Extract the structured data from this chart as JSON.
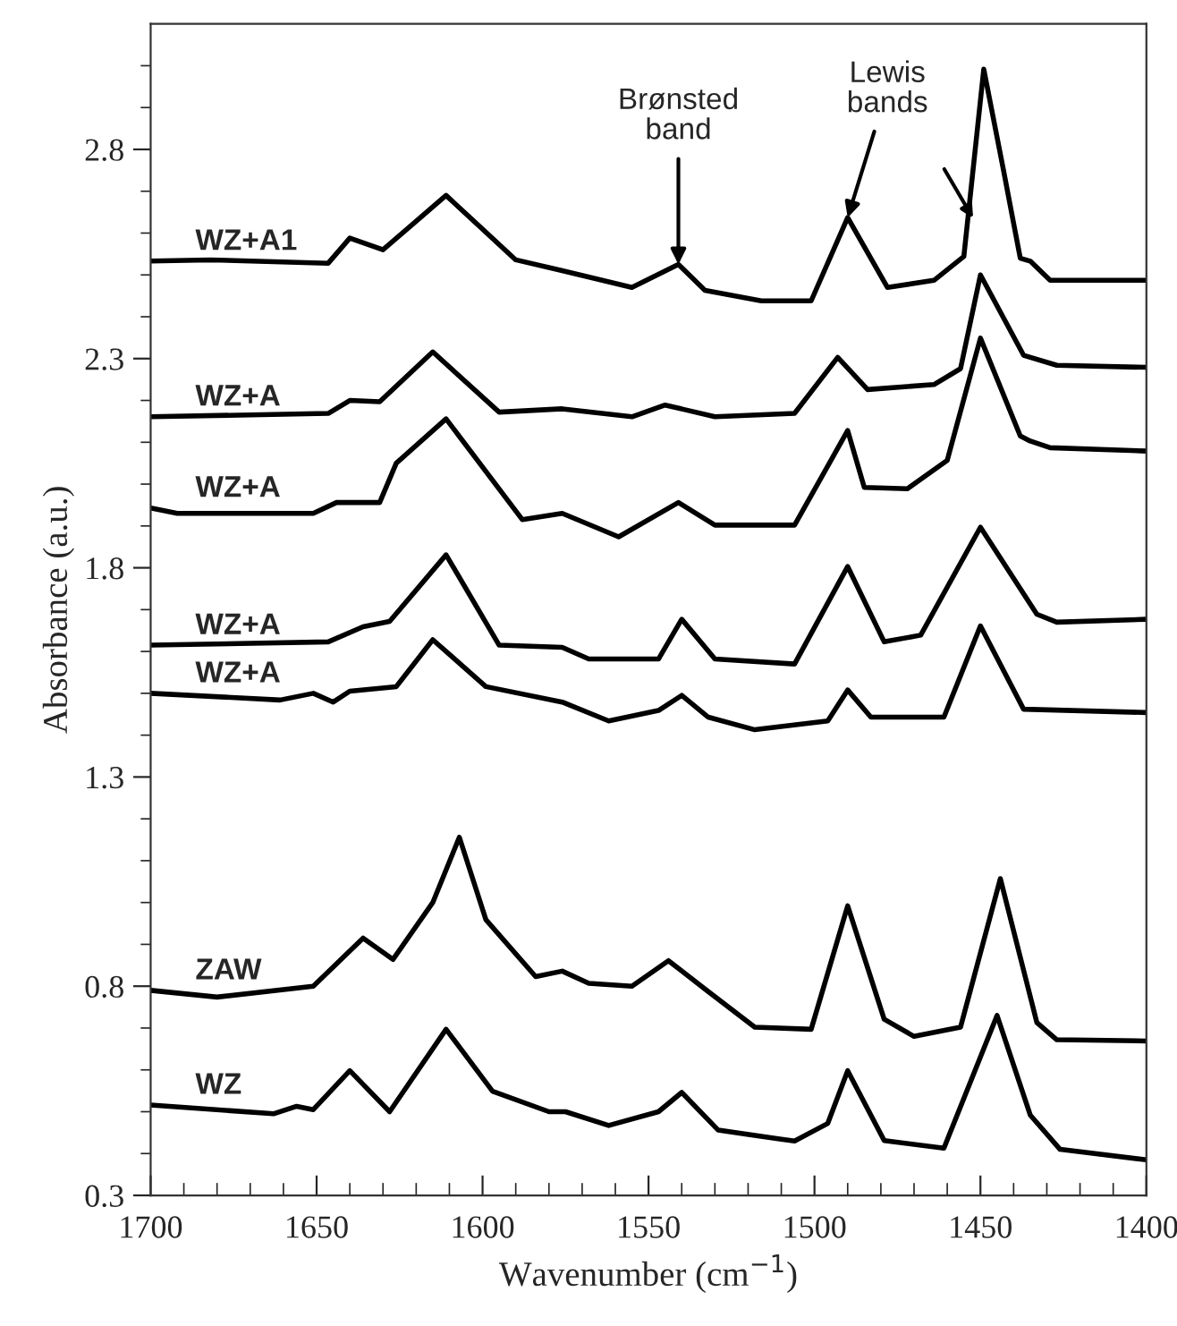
{
  "chart_data": {
    "type": "line",
    "xlabel": "Wavenumber (cm$^{−1}$)",
    "ylabel": "Absorbance (a.u.)",
    "xlim": [
      1700,
      1400
    ],
    "ylim": [
      0.3,
      3.1
    ],
    "xticks": [
      1700,
      {
        "value": 1690,
        "label": null
      },
      {
        "value": 1680,
        "label": null
      },
      {
        "value": 1670,
        "label": null
      },
      {
        "value": 1660,
        "label": null
      },
      1650,
      {
        "value": 1640,
        "label": null
      },
      {
        "value": 1630,
        "label": null
      },
      {
        "value": 1620,
        "label": null
      },
      {
        "value": 1610,
        "label": null
      },
      1600,
      {
        "value": 1590,
        "label": null
      },
      {
        "value": 1580,
        "label": null
      },
      {
        "value": 1570,
        "label": null
      },
      {
        "value": 1560,
        "label": null
      },
      1550,
      {
        "value": 1540,
        "label": null
      },
      {
        "value": 1530,
        "label": null
      },
      {
        "value": 1520,
        "label": null
      },
      {
        "value": 1510,
        "label": null
      },
      1500,
      {
        "value": 1490,
        "label": null
      },
      {
        "value": 1480,
        "label": null
      },
      {
        "value": 1470,
        "label": null
      },
      {
        "value": 1460,
        "label": null
      },
      1450,
      {
        "value": 1440,
        "label": null
      },
      {
        "value": 1430,
        "label": null
      },
      {
        "value": 1420,
        "label": null
      },
      {
        "value": 1410,
        "label": null
      },
      1400
    ],
    "yticks": [
      0.3,
      {
        "value": 0.4,
        "label": null
      },
      {
        "value": 0.5,
        "label": null
      },
      {
        "value": 0.6,
        "label": null
      },
      {
        "value": 0.7,
        "label": null
      },
      0.8,
      {
        "value": 0.9,
        "label": null
      },
      {
        "value": 1.0,
        "label": null
      },
      {
        "value": 1.1,
        "label": null
      },
      {
        "value": 1.2,
        "label": null
      },
      1.3,
      {
        "value": 1.4,
        "label": null
      },
      {
        "value": 1.5,
        "label": null
      },
      {
        "value": 1.6,
        "label": null
      },
      {
        "value": 1.7,
        "label": null
      },
      1.8,
      {
        "value": 1.9,
        "label": null
      },
      {
        "value": 2.0,
        "label": null
      },
      {
        "value": 2.1,
        "label": null
      },
      {
        "value": 2.2,
        "label": null
      },
      2.3,
      {
        "value": 2.4,
        "label": null
      },
      {
        "value": 2.5,
        "label": null
      },
      {
        "value": 2.6,
        "label": null
      },
      {
        "value": 2.7,
        "label": null
      },
      2.8,
      {
        "value": 2.9,
        "label": null
      },
      {
        "value": 3.0,
        "label": null
      }
    ],
    "grid": false,
    "legend": false,
    "marker": "none",
    "line_style": "solid",
    "annotations": [
      {
        "text": "Brønsted\nband",
        "x": 1541,
        "y": 2.525
      },
      {
        "text": "Lewis\nbands",
        "x": 1490,
        "y": 2.637
      }
    ],
    "series": [
      {
        "name": "WZ+A1",
        "color": "#000000",
        "x": [
          1700,
          1682,
          1646.5,
          1640,
          1630,
          1611,
          1590,
          1576,
          1555,
          1541,
          1533,
          1516,
          1501,
          1490,
          1478,
          1464,
          1455,
          1449,
          1443,
          1438,
          1435,
          1429,
          1400
        ],
        "values": [
          2.533,
          2.536,
          2.528,
          2.588,
          2.56,
          2.69,
          2.536,
          2.51,
          2.47,
          2.525,
          2.463,
          2.438,
          2.438,
          2.637,
          2.47,
          2.487,
          2.544,
          2.992,
          2.748,
          2.54,
          2.533,
          2.487,
          2.487
        ]
      },
      {
        "name": "WZ+A",
        "color": "#000000",
        "x": [
          1700,
          1646.5,
          1640,
          1631,
          1615,
          1595,
          1576,
          1555,
          1545,
          1530,
          1506,
          1493,
          1484,
          1464,
          1456,
          1450,
          1437,
          1427,
          1400
        ],
        "values": [
          2.161,
          2.169,
          2.2,
          2.197,
          2.316,
          2.172,
          2.18,
          2.161,
          2.189,
          2.161,
          2.169,
          2.303,
          2.226,
          2.238,
          2.276,
          2.5,
          2.308,
          2.284,
          2.279
        ]
      },
      {
        "name": "WZ+A",
        "color": "#000000",
        "x": [
          1700,
          1692,
          1651,
          1644,
          1631,
          1626,
          1611,
          1588,
          1576,
          1559,
          1541,
          1530,
          1506,
          1490,
          1485,
          1472,
          1460,
          1450,
          1438,
          1435,
          1429,
          1400
        ],
        "values": [
          1.943,
          1.93,
          1.93,
          1.956,
          1.956,
          2.05,
          2.156,
          1.915,
          1.93,
          1.874,
          1.956,
          1.902,
          1.902,
          2.128,
          1.992,
          1.989,
          2.057,
          2.349,
          2.115,
          2.103,
          2.087,
          2.079
        ]
      },
      {
        "name": "WZ+A",
        "color": "#000000",
        "x": [
          1700,
          1646.5,
          1636,
          1628,
          1611,
          1595,
          1576,
          1568,
          1547,
          1540,
          1530,
          1506,
          1490,
          1479,
          1468,
          1450,
          1433,
          1427,
          1400
        ],
        "values": [
          1.615,
          1.623,
          1.659,
          1.672,
          1.831,
          1.615,
          1.61,
          1.582,
          1.582,
          1.677,
          1.582,
          1.57,
          1.803,
          1.623,
          1.639,
          1.897,
          1.689,
          1.67,
          1.677
        ]
      },
      {
        "name": "WZ+A",
        "color": "#000000",
        "x": [
          1700,
          1661,
          1651,
          1645,
          1640,
          1626,
          1615,
          1599,
          1576,
          1562,
          1547,
          1540,
          1532,
          1518,
          1496,
          1490,
          1483,
          1461,
          1450,
          1437,
          1400
        ],
        "values": [
          1.5,
          1.484,
          1.5,
          1.479,
          1.505,
          1.516,
          1.628,
          1.516,
          1.479,
          1.434,
          1.459,
          1.495,
          1.443,
          1.413,
          1.434,
          1.508,
          1.443,
          1.443,
          1.661,
          1.462,
          1.454
        ]
      },
      {
        "name": "ZAW",
        "color": "#000000",
        "x": [
          1700,
          1680,
          1651,
          1636,
          1627,
          1615,
          1607,
          1599,
          1584,
          1576,
          1568,
          1555,
          1544,
          1532,
          1518,
          1501,
          1490,
          1479,
          1470,
          1456,
          1444,
          1433,
          1427,
          1400
        ],
        "values": [
          0.79,
          0.774,
          0.8,
          0.915,
          0.864,
          1.0,
          1.156,
          0.959,
          0.823,
          0.836,
          0.807,
          0.8,
          0.861,
          0.787,
          0.702,
          0.697,
          0.992,
          0.721,
          0.68,
          0.702,
          1.057,
          0.713,
          0.672,
          0.669
        ]
      },
      {
        "name": "WZ",
        "color": "#000000",
        "x": [
          1700,
          1663,
          1656,
          1651,
          1640,
          1628,
          1611,
          1597,
          1580,
          1575,
          1562,
          1547,
          1540,
          1529,
          1510,
          1506,
          1496,
          1490,
          1479,
          1461,
          1445,
          1435,
          1426,
          1400
        ],
        "values": [
          0.516,
          0.495,
          0.513,
          0.505,
          0.598,
          0.5,
          0.697,
          0.549,
          0.5,
          0.5,
          0.467,
          0.5,
          0.546,
          0.456,
          0.434,
          0.43,
          0.472,
          0.598,
          0.431,
          0.413,
          0.73,
          0.492,
          0.41,
          0.385
        ]
      }
    ]
  }
}
